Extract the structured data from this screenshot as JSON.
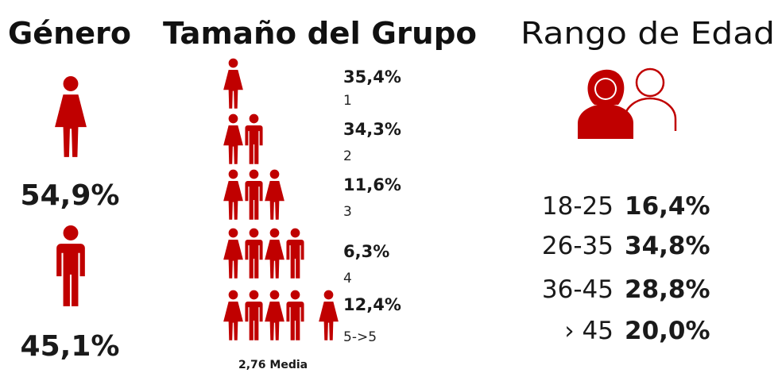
{
  "gender": {
    "title": "Género",
    "items": [
      {
        "value": "54,9%"
      },
      {
        "value": "45,1%"
      }
    ]
  },
  "group": {
    "title": "Tamaño del Grupo",
    "rows": [
      {
        "percent": "35,4%",
        "label": "1"
      },
      {
        "percent": "34,3%",
        "label": "2"
      },
      {
        "percent": "11,6%",
        "label": "3"
      },
      {
        "percent": "6,3%",
        "label": "4"
      },
      {
        "percent": "12,4%",
        "label": "5->5"
      }
    ],
    "footer": "2,76 Media"
  },
  "age": {
    "title": "Rango de Edad",
    "rows": [
      {
        "range": "18-25",
        "percent": "16,4%"
      },
      {
        "range": "26-35",
        "percent": "34,8%"
      },
      {
        "range": "36-45",
        "percent": "28,8%"
      },
      {
        "range": "› 45",
        "percent": "20,0%"
      }
    ]
  }
}
